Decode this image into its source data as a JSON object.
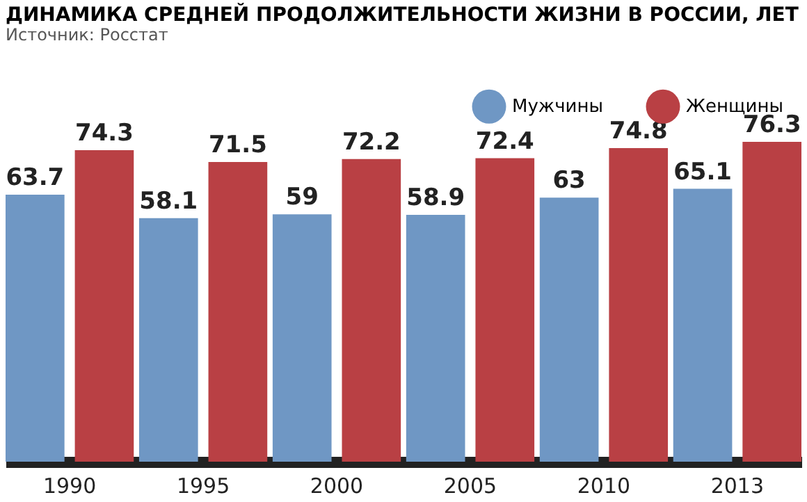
{
  "chart_data": {
    "type": "bar",
    "title": "ДИНАМИКА СРЕДНЕЙ ПРОДОЛЖИТЕЛЬНОСТИ ЖИЗНИ В РОССИИ, ЛЕТ",
    "subtitle": "Источник: Росстат",
    "categories": [
      "1990",
      "1995",
      "2000",
      "2005",
      "2010",
      "2013"
    ],
    "series": [
      {
        "name": "Мужчины",
        "color": "#6f97c4",
        "values": [
          63.7,
          58.1,
          59,
          58.9,
          63,
          65.1
        ]
      },
      {
        "name": "Женщины",
        "color": "#b94044",
        "values": [
          74.3,
          71.5,
          72.2,
          72.4,
          74.8,
          76.3
        ]
      }
    ],
    "data_labels": true,
    "legend": "top right",
    "grid": false,
    "tick_labels": "x"
  }
}
